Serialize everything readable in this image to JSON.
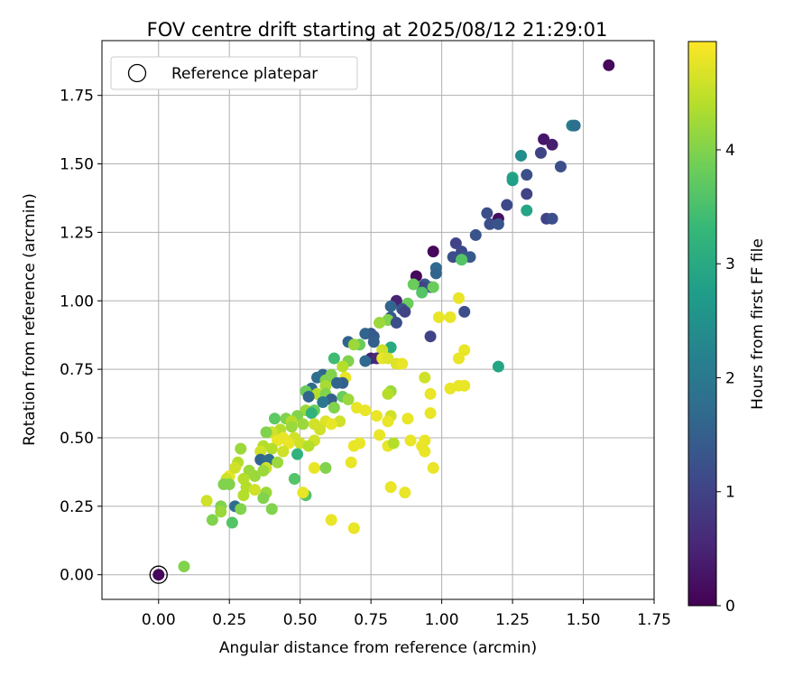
{
  "chart_data": {
    "type": "scatter",
    "title": "FOV centre drift starting at 2025/08/12 21:29:01",
    "xlabel": "Angular distance from reference (arcmin)",
    "ylabel": "Rotation from reference (arcmin)",
    "xlim": [
      -0.2,
      1.75
    ],
    "ylim": [
      -0.09,
      1.95
    ],
    "xticks": [
      "0.00",
      "0.25",
      "0.50",
      "0.75",
      "1.00",
      "1.25",
      "1.50",
      "1.75"
    ],
    "yticks": [
      "0.00",
      "0.25",
      "0.50",
      "0.75",
      "1.00",
      "1.25",
      "1.50",
      "1.75"
    ],
    "grid": true,
    "legend": {
      "placement": "top-left",
      "entries": [
        "Reference platepar"
      ]
    },
    "reference_point": {
      "x": 0.0,
      "y": 0.0,
      "marker": "open-circle"
    },
    "colormap": "viridis",
    "colorbar": {
      "label": "Hours from first FF file",
      "range": [
        0,
        4.95
      ],
      "ticks": [
        "0",
        "1",
        "2",
        "3",
        "4"
      ]
    },
    "series": [
      {
        "color_by": "hours",
        "points": [
          [
            1.59,
            1.86,
            0.1
          ],
          [
            1.36,
            1.59,
            0.3
          ],
          [
            1.39,
            1.57,
            0.4
          ],
          [
            1.46,
            1.64,
            2.2
          ],
          [
            1.47,
            1.64,
            1.8
          ],
          [
            1.35,
            1.54,
            1.0
          ],
          [
            1.3,
            1.46,
            1.2
          ],
          [
            1.28,
            1.53,
            2.4
          ],
          [
            1.42,
            1.49,
            1.2
          ],
          [
            1.25,
            1.45,
            2.9
          ],
          [
            1.25,
            1.44,
            2.8
          ],
          [
            1.3,
            1.39,
            1.0
          ],
          [
            1.23,
            1.35,
            1.1
          ],
          [
            1.3,
            1.33,
            2.9
          ],
          [
            1.16,
            1.32,
            1.2
          ],
          [
            1.2,
            1.3,
            0.2
          ],
          [
            1.37,
            1.3,
            1.0
          ],
          [
            1.39,
            1.3,
            1.2
          ],
          [
            1.17,
            1.28,
            1.2
          ],
          [
            1.2,
            1.28,
            1.3
          ],
          [
            1.12,
            1.24,
            1.3
          ],
          [
            1.05,
            1.21,
            1.0
          ],
          [
            0.97,
            1.18,
            0.1
          ],
          [
            1.07,
            1.18,
            1.1
          ],
          [
            1.04,
            1.16,
            1.2
          ],
          [
            1.08,
            1.16,
            1.3
          ],
          [
            1.1,
            1.16,
            1.4
          ],
          [
            1.07,
            1.15,
            3.6
          ],
          [
            0.98,
            1.12,
            1.7
          ],
          [
            0.98,
            1.1,
            1.6
          ],
          [
            0.91,
            1.09,
            0.1
          ],
          [
            0.94,
            1.06,
            1.4
          ],
          [
            0.93,
            1.05,
            1.0
          ],
          [
            0.96,
            1.05,
            1.2
          ],
          [
            0.9,
            1.06,
            3.8
          ],
          [
            0.93,
            1.03,
            3.6
          ],
          [
            0.97,
            1.05,
            3.8
          ],
          [
            0.84,
            1.0,
            0.5
          ],
          [
            0.88,
            0.99,
            3.8
          ],
          [
            0.82,
            0.98,
            1.6
          ],
          [
            0.86,
            0.97,
            1.3
          ],
          [
            0.87,
            0.96,
            1.0
          ],
          [
            0.82,
            0.94,
            1.4
          ],
          [
            1.08,
            0.96,
            1.2
          ],
          [
            0.81,
            0.93,
            4.0
          ],
          [
            0.84,
            0.92,
            1.2
          ],
          [
            0.78,
            0.92,
            4.2
          ],
          [
            0.99,
            0.94,
            4.8
          ],
          [
            1.03,
            0.94,
            4.8
          ],
          [
            1.06,
            1.01,
            4.8
          ],
          [
            0.75,
            0.88,
            1.3
          ],
          [
            0.73,
            0.88,
            1.6
          ],
          [
            0.76,
            0.87,
            1.4
          ],
          [
            0.67,
            0.85,
            1.6
          ],
          [
            0.71,
            0.84,
            3.8
          ],
          [
            0.69,
            0.84,
            4.2
          ],
          [
            0.76,
            0.85,
            1.5
          ],
          [
            0.96,
            0.87,
            1.0
          ],
          [
            0.82,
            0.83,
            3.0
          ],
          [
            0.79,
            0.82,
            4.6
          ],
          [
            0.75,
            0.79,
            0.4
          ],
          [
            0.77,
            0.79,
            0.6
          ],
          [
            0.73,
            0.78,
            1.7
          ],
          [
            0.79,
            0.79,
            4.8
          ],
          [
            0.81,
            0.79,
            4.7
          ],
          [
            0.84,
            0.77,
            4.7
          ],
          [
            0.86,
            0.77,
            4.8
          ],
          [
            0.67,
            0.78,
            4.0
          ],
          [
            0.62,
            0.79,
            3.4
          ],
          [
            0.65,
            0.76,
            4.4
          ],
          [
            1.08,
            0.82,
            4.8
          ],
          [
            1.06,
            0.79,
            4.8
          ],
          [
            1.2,
            0.76,
            2.9
          ],
          [
            0.58,
            0.73,
            1.6
          ],
          [
            0.56,
            0.72,
            1.8
          ],
          [
            0.61,
            0.73,
            4.0
          ],
          [
            0.59,
            0.71,
            4.0
          ],
          [
            0.66,
            0.72,
            4.8
          ],
          [
            0.65,
            0.7,
            1.5
          ],
          [
            0.63,
            0.7,
            1.6
          ],
          [
            0.59,
            0.69,
            4.3
          ],
          [
            0.54,
            0.68,
            1.7
          ],
          [
            0.52,
            0.67,
            3.8
          ],
          [
            0.56,
            0.66,
            4.4
          ],
          [
            0.53,
            0.65,
            1.6
          ],
          [
            0.59,
            0.66,
            4.0
          ],
          [
            0.65,
            0.65,
            3.8
          ],
          [
            0.67,
            0.64,
            4.2
          ],
          [
            0.61,
            0.64,
            1.5
          ],
          [
            0.58,
            0.63,
            2.0
          ],
          [
            0.82,
            0.67,
            4.2
          ],
          [
            0.81,
            0.66,
            4.4
          ],
          [
            0.94,
            0.72,
            4.6
          ],
          [
            0.96,
            0.66,
            4.8
          ],
          [
            1.03,
            0.68,
            4.8
          ],
          [
            1.08,
            0.69,
            4.8
          ],
          [
            1.06,
            0.69,
            4.8
          ],
          [
            0.52,
            0.6,
            4.2
          ],
          [
            0.55,
            0.6,
            3.8
          ],
          [
            0.62,
            0.61,
            4.0
          ],
          [
            0.7,
            0.61,
            4.8
          ],
          [
            0.73,
            0.6,
            4.8
          ],
          [
            0.77,
            0.58,
            4.8
          ],
          [
            0.82,
            0.58,
            4.6
          ],
          [
            0.88,
            0.57,
            4.8
          ],
          [
            0.96,
            0.59,
            4.8
          ],
          [
            0.81,
            0.56,
            4.8
          ],
          [
            0.54,
            0.59,
            3.2
          ],
          [
            0.49,
            0.58,
            4.0
          ],
          [
            0.45,
            0.57,
            4.0
          ],
          [
            0.41,
            0.57,
            3.7
          ],
          [
            0.47,
            0.56,
            4.4
          ],
          [
            0.51,
            0.55,
            4.2
          ],
          [
            0.55,
            0.55,
            4.6
          ],
          [
            0.59,
            0.56,
            4.7
          ],
          [
            0.64,
            0.56,
            4.6
          ],
          [
            0.61,
            0.55,
            4.8
          ],
          [
            0.47,
            0.54,
            4.2
          ],
          [
            0.43,
            0.53,
            4.4
          ],
          [
            0.4,
            0.52,
            4.6
          ],
          [
            0.38,
            0.52,
            4.0
          ],
          [
            0.57,
            0.53,
            4.6
          ],
          [
            0.44,
            0.5,
            4.8
          ],
          [
            0.48,
            0.5,
            4.6
          ],
          [
            0.42,
            0.49,
            4.8
          ],
          [
            0.46,
            0.48,
            4.8
          ],
          [
            0.5,
            0.48,
            4.6
          ],
          [
            0.55,
            0.49,
            4.6
          ],
          [
            0.78,
            0.51,
            4.8
          ],
          [
            0.71,
            0.48,
            4.8
          ],
          [
            0.69,
            0.47,
            4.8
          ],
          [
            0.81,
            0.47,
            4.8
          ],
          [
            0.83,
            0.48,
            4.4
          ],
          [
            0.89,
            0.49,
            4.8
          ],
          [
            0.93,
            0.47,
            4.8
          ],
          [
            0.94,
            0.49,
            4.8
          ],
          [
            0.37,
            0.47,
            4.4
          ],
          [
            0.4,
            0.46,
            4.4
          ],
          [
            0.36,
            0.45,
            4.6
          ],
          [
            0.44,
            0.45,
            4.6
          ],
          [
            0.49,
            0.44,
            3.2
          ],
          [
            0.53,
            0.47,
            4.4
          ],
          [
            0.29,
            0.46,
            4.2
          ],
          [
            0.36,
            0.42,
            1.6
          ],
          [
            0.39,
            0.42,
            1.8
          ],
          [
            0.42,
            0.41,
            4.2
          ],
          [
            0.38,
            0.39,
            4.6
          ],
          [
            0.28,
            0.41,
            4.4
          ],
          [
            0.32,
            0.38,
            4.2
          ],
          [
            0.3,
            0.35,
            4.4
          ],
          [
            0.34,
            0.36,
            4.2
          ],
          [
            0.37,
            0.38,
            4.2
          ],
          [
            0.25,
            0.36,
            4.8
          ],
          [
            0.24,
            0.35,
            4.6
          ],
          [
            0.27,
            0.39,
            4.6
          ],
          [
            0.48,
            0.35,
            3.6
          ],
          [
            0.55,
            0.39,
            4.8
          ],
          [
            0.59,
            0.39,
            4.0
          ],
          [
            0.68,
            0.41,
            4.8
          ],
          [
            0.97,
            0.39,
            4.8
          ],
          [
            0.94,
            0.45,
            4.8
          ],
          [
            0.23,
            0.33,
            4.0
          ],
          [
            0.25,
            0.33,
            4.0
          ],
          [
            0.31,
            0.32,
            4.4
          ],
          [
            0.34,
            0.31,
            4.6
          ],
          [
            0.38,
            0.3,
            4.2
          ],
          [
            0.3,
            0.29,
            4.4
          ],
          [
            0.37,
            0.28,
            4.0
          ],
          [
            0.52,
            0.29,
            3.6
          ],
          [
            0.51,
            0.3,
            4.8
          ],
          [
            0.82,
            0.32,
            4.8
          ],
          [
            0.87,
            0.3,
            4.8
          ],
          [
            0.17,
            0.27,
            4.6
          ],
          [
            0.27,
            0.25,
            1.8
          ],
          [
            0.22,
            0.25,
            4.0
          ],
          [
            0.29,
            0.24,
            4.0
          ],
          [
            0.4,
            0.24,
            4.0
          ],
          [
            0.22,
            0.23,
            4.2
          ],
          [
            0.19,
            0.2,
            4.0
          ],
          [
            0.26,
            0.19,
            3.6
          ],
          [
            0.61,
            0.2,
            4.8
          ],
          [
            0.69,
            0.17,
            4.8
          ],
          [
            0.09,
            0.03,
            4.0
          ],
          [
            0.0,
            0.0,
            0.1
          ]
        ]
      }
    ]
  }
}
